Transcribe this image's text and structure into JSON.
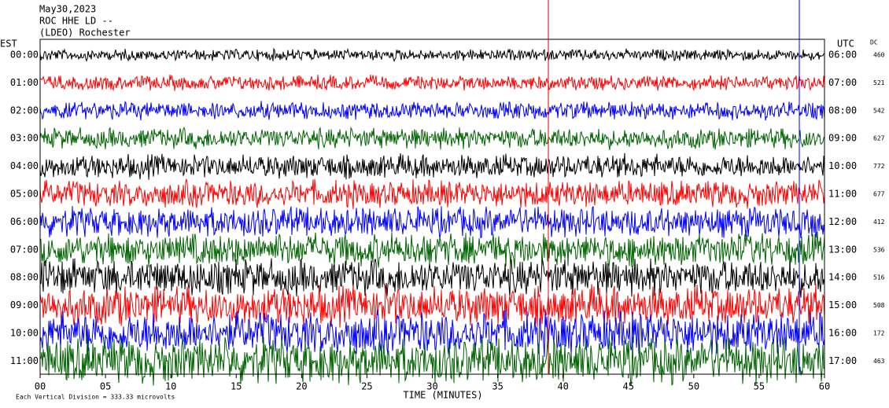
{
  "header": {
    "date": "May30,2023",
    "station": "ROC HHE LD --",
    "network": "(LDEO) Rochester"
  },
  "left_axis": {
    "title": "EST",
    "labels": [
      "00:00",
      "01:00",
      "02:00",
      "03:00",
      "04:00",
      "05:00",
      "06:00",
      "07:00",
      "08:00",
      "09:00",
      "10:00",
      "11:00"
    ]
  },
  "right_axis": {
    "title": "UTC",
    "labels": [
      "06:00",
      "07:00",
      "08:00",
      "09:00",
      "10:00",
      "11:00",
      "12:00",
      "13:00",
      "14:00",
      "15:00",
      "16:00",
      "17:00"
    ]
  },
  "dc": {
    "title": "DC",
    "values": [
      "460",
      "521",
      "542",
      "627",
      "772",
      "677",
      "412",
      "536",
      "516",
      "508",
      "172",
      "463"
    ]
  },
  "bottom_axis": {
    "labels": [
      "00",
      "05",
      "10",
      "15",
      "20",
      "25",
      "30",
      "35",
      "40",
      "45",
      "50",
      "55",
      "60"
    ],
    "title": "TIME (MINUTES)"
  },
  "footer": {
    "note": "Each Vertical Division = 333.33 microvolts"
  }
}
